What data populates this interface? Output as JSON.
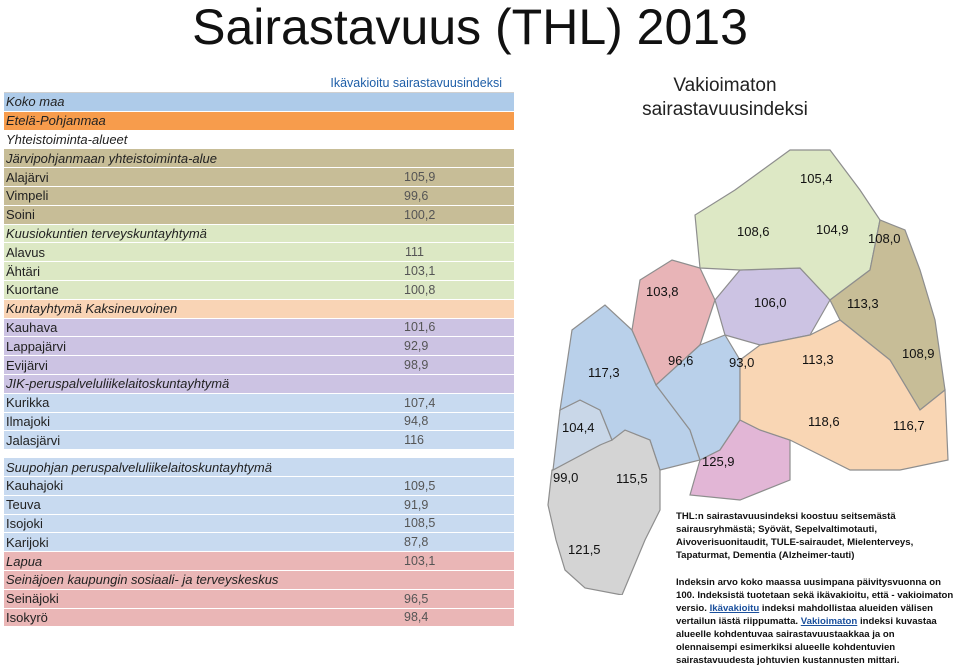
{
  "title": "Sairastavuus (THL) 2013",
  "table": {
    "column_header": "Ikävakioitu sairastavuusindeksi",
    "rows": [
      {
        "name": "Koko maa",
        "value": "",
        "style": "italic",
        "color": "#aecbe9"
      },
      {
        "name": "Etelä-Pohjanmaa",
        "value": "",
        "style": "italic",
        "color": "#f79c4c"
      },
      {
        "name": "Yhteistoiminta-alueet",
        "value": "",
        "style": "italic",
        "color": "#ffffff"
      },
      {
        "name": "Järvipohjanmaan yhteistoiminta-alue",
        "value": "",
        "style": "italic",
        "color": "#c7bd97"
      },
      {
        "name": "Alajärvi",
        "value": "105,9",
        "style": "normal",
        "color": "#c7bd97"
      },
      {
        "name": "Vimpeli",
        "value": "99,6",
        "style": "normal",
        "color": "#c7bd97"
      },
      {
        "name": "Soini",
        "value": "100,2",
        "style": "normal",
        "color": "#c7bd97"
      },
      {
        "name": "Kuusiokuntien terveyskuntayhtymä",
        "value": "",
        "style": "italic",
        "color": "#dce8c4"
      },
      {
        "name": "Alavus",
        "value": "111",
        "style": "normal",
        "color": "#dce8c4"
      },
      {
        "name": "Ähtäri",
        "value": "103,1",
        "style": "normal",
        "color": "#dce8c4"
      },
      {
        "name": "Kuortane",
        "value": "100,8",
        "style": "normal",
        "color": "#dce8c4"
      },
      {
        "name": "Kuntayhtymä Kaksineuvoinen",
        "value": "",
        "style": "italic",
        "color": "#f9d4b5"
      },
      {
        "name": "Kauhava",
        "value": "101,6",
        "style": "normal",
        "color": "#ccc3e3"
      },
      {
        "name": "Lappajärvi",
        "value": "92,9",
        "style": "normal",
        "color": "#ccc3e3"
      },
      {
        "name": "Evijärvi",
        "value": "98,9",
        "style": "normal",
        "color": "#ccc3e3"
      },
      {
        "name": "JIK-peruspalveluliikelaitoskuntayhtymä",
        "value": "",
        "style": "italic",
        "color": "#ccc3e3"
      },
      {
        "name": "Kurikka",
        "value": "107,4",
        "style": "normal",
        "color": "#c8daf0"
      },
      {
        "name": "Ilmajoki",
        "value": "94,8",
        "style": "normal",
        "color": "#c8daf0"
      },
      {
        "name": "Jalasjärvi",
        "value": "116",
        "style": "normal",
        "color": "#c8daf0"
      },
      {
        "name": "",
        "value": "",
        "style": "gap",
        "color": "#ffffff"
      },
      {
        "name": "Suupohjan peruspalveluliikelaitoskuntayhtymä",
        "value": "",
        "style": "italic",
        "color": "#c8daf0"
      },
      {
        "name": "Kauhajoki",
        "value": "109,5",
        "style": "normal",
        "color": "#c8daf0"
      },
      {
        "name": "Teuva",
        "value": "91,9",
        "style": "normal",
        "color": "#c8daf0"
      },
      {
        "name": "Isojoki",
        "value": "108,5",
        "style": "normal",
        "color": "#c8daf0"
      },
      {
        "name": "Karijoki",
        "value": "87,8",
        "style": "normal",
        "color": "#c8daf0"
      },
      {
        "name": "Lapua",
        "value": "103,1",
        "style": "italic",
        "color": "#eab6b6"
      },
      {
        "name": "Seinäjoen kaupungin sosiaali- ja terveyskeskus",
        "value": "",
        "style": "italic",
        "color": "#eab6b6"
      },
      {
        "name": "Seinäjoki",
        "value": "96,5",
        "style": "normal",
        "color": "#eab6b6"
      },
      {
        "name": "Isokyrö",
        "value": "98,4",
        "style": "normal",
        "color": "#eab6b6"
      }
    ]
  },
  "map": {
    "title_line1": "Vakioimaton",
    "title_line2": "sairastavuusindeksi",
    "labels": {
      "v1054": "105,4",
      "v1086": "108,6",
      "v1049": "104,9",
      "v1080": "108,0",
      "v1038": "103,8",
      "v1060": "106,0",
      "v1133a": "113,3",
      "v1173": "117,3",
      "v966": "96,6",
      "v930": "93,0",
      "v1133b": "113,3",
      "v1089": "108,9",
      "v1044": "104,4",
      "v1186": "118,6",
      "v1167": "116,7",
      "v990": "99,0",
      "v1155": "115,5",
      "v1259": "125,9",
      "v1215": "121,5"
    }
  },
  "notes": {
    "p1": "THL:n sairastavuusindeksi koostuu seitsemästä sairausryhmästä; Syövät, Sepelvaltimotauti, Aivoverisuonitaudit, TULE-sairaudet, Mielenterveys, Tapaturmat, Dementia (Alzheimer-tauti)",
    "p2_a": "Indeksin arvo koko maassa uusimpana päivitysvuonna on 100. Indeksistä tuotetaan sekä ikävakioitu, että - vakioimaton versio. ",
    "p2_link1": "Ikävakioitu",
    "p2_b": " indeksi mahdollistaa alueiden välisen vertailun iästä riippumatta. ",
    "p2_link2": "Vakioimaton",
    "p2_c": " indeksi kuvastaa alueelle kohdentuvaa sairastavuustaakkaa ja on olennaisempi esimerkiksi alueelle kohdentuvien sairastavuudesta johtuvien kustannusten mittari."
  }
}
